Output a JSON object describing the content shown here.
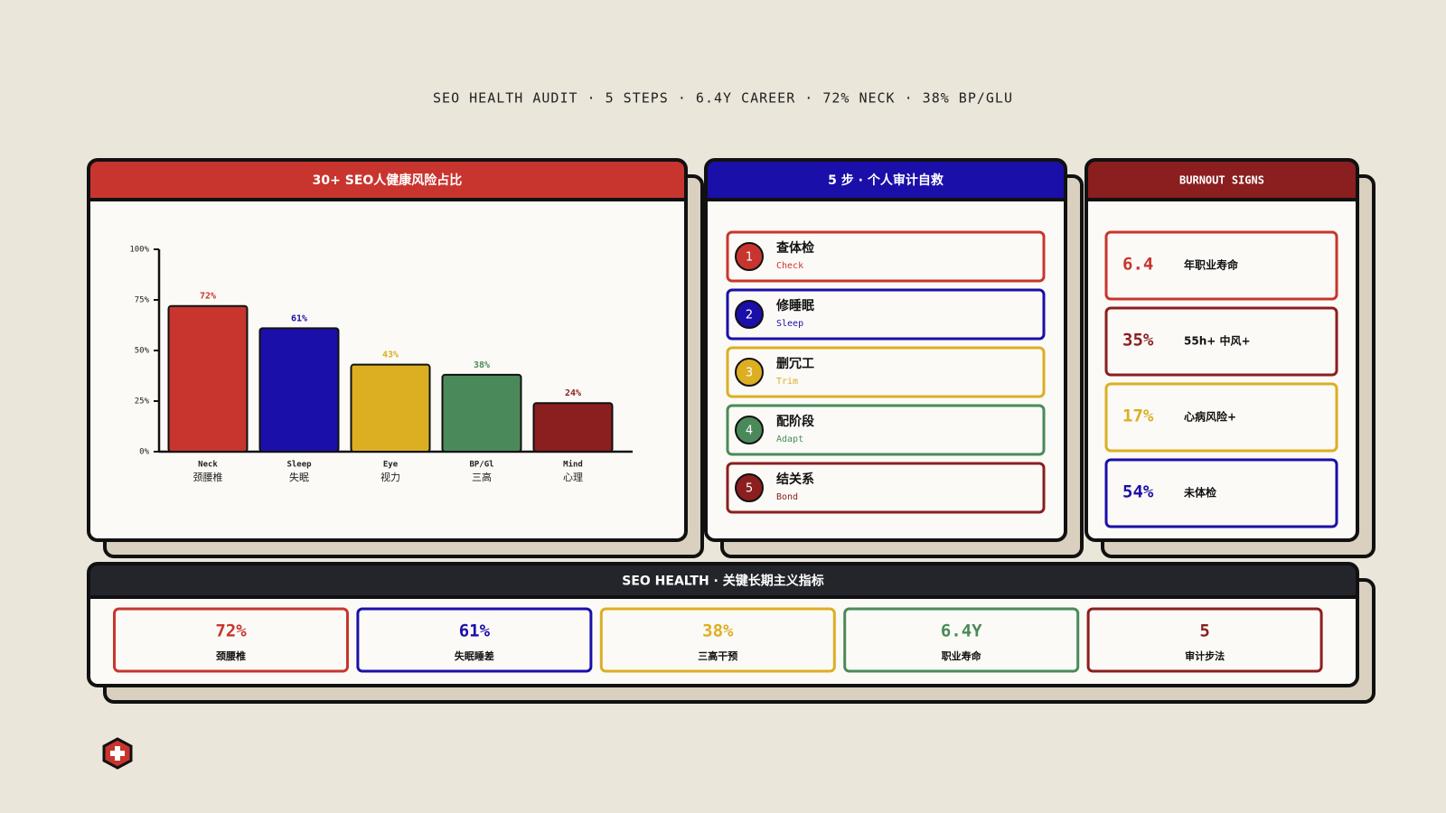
{
  "header": {
    "title": "SEO HEALTH AUDIT · 5 STEPS · 6.4Y CAREER · 72% NECK · 38% BP/GLU"
  },
  "chart_data": {
    "type": "bar",
    "title": "30+ SEO人健康风险占比",
    "header_color": "#c8352e",
    "categories": [
      "Neck",
      "Sleep",
      "Eye",
      "BP/Gl",
      "Mind"
    ],
    "subcategories": [
      "颈腰椎",
      "失眠",
      "视力",
      "三高",
      "心理"
    ],
    "values": [
      72,
      61,
      43,
      38,
      24
    ],
    "value_labels": [
      "72%",
      "61%",
      "43%",
      "38%",
      "24%"
    ],
    "colors": [
      "#c8352e",
      "#1a0fa8",
      "#dcae22",
      "#4a8a5a",
      "#8b1e1e"
    ],
    "ylim": [
      0,
      100
    ],
    "yticks": [
      {
        "value": 0,
        "label": "0%"
      },
      {
        "value": 25,
        "label": "25%"
      },
      {
        "value": 50,
        "label": "50%"
      },
      {
        "value": 75,
        "label": "75%"
      },
      {
        "value": 100,
        "label": "100%"
      }
    ]
  },
  "steps_panel": {
    "title": "5 步 · 个人审计自救",
    "header_color": "#1a0fa8",
    "steps": [
      {
        "number": 1,
        "title": "查体检",
        "subtitle": "Check",
        "color": "#c8352e"
      },
      {
        "number": 2,
        "title": "修睡眠",
        "subtitle": "Sleep",
        "color": "#1a0fa8"
      },
      {
        "number": 3,
        "title": "删冗工",
        "subtitle": "Trim",
        "color": "#dcae22"
      },
      {
        "number": 4,
        "title": "配阶段",
        "subtitle": "Adapt",
        "color": "#4a8a5a"
      },
      {
        "number": 5,
        "title": "结关系",
        "subtitle": "Bond",
        "color": "#8b1e1e"
      }
    ]
  },
  "signs_panel": {
    "title": "BURNOUT SIGNS",
    "header_color": "#8b1e1e",
    "signs": [
      {
        "value": "6.4",
        "label": "年职业寿命",
        "color": "#c8352e"
      },
      {
        "value": "35%",
        "label": "55h+ 中风+",
        "color": "#8b1e1e"
      },
      {
        "value": "17%",
        "label": "心病风险+",
        "color": "#dcae22"
      },
      {
        "value": "54%",
        "label": "未体检",
        "color": "#1a0fa8"
      }
    ]
  },
  "metrics_panel": {
    "title": "SEO HEALTH · 关键长期主义指标",
    "header_color": "#24252b",
    "metrics": [
      {
        "value": "72%",
        "label": "颈腰椎",
        "color": "#c8352e"
      },
      {
        "value": "61%",
        "label": "失眠睡差",
        "color": "#1a0fa8"
      },
      {
        "value": "38%",
        "label": "三高干预",
        "color": "#dcae22"
      },
      {
        "value": "6.4Y",
        "label": "职业寿命",
        "color": "#4a8a5a"
      },
      {
        "value": "5",
        "label": "审计步法",
        "color": "#8b1e1e"
      }
    ]
  }
}
